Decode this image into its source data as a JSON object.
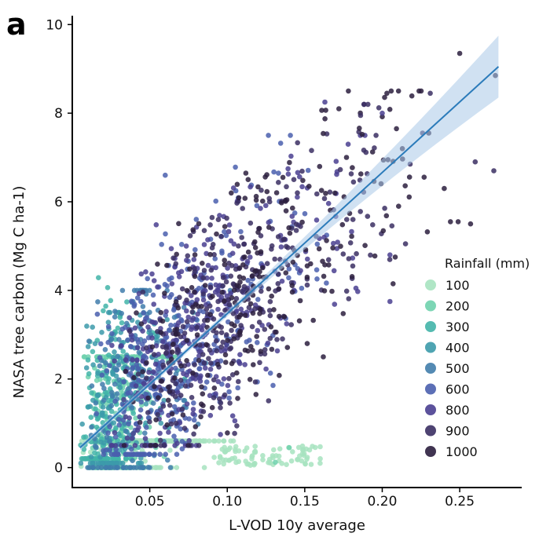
{
  "panel_label": "a",
  "chart_data": {
    "type": "scatter",
    "title": "",
    "xlabel": "L-VOD 10y average",
    "ylabel": "NASA tree carbon (Mg C ha-1)",
    "xlim": [
      0.0,
      0.29
    ],
    "ylim": [
      -0.45,
      10.2
    ],
    "xticks": [
      0.05,
      0.1,
      0.15,
      0.2,
      0.25
    ],
    "xtick_labels": [
      "0.05",
      "0.10",
      "0.15",
      "0.20",
      "0.25"
    ],
    "yticks": [
      0,
      2,
      4,
      6,
      8,
      10
    ],
    "ytick_labels": [
      "0",
      "2",
      "4",
      "6",
      "8",
      "10"
    ],
    "grid": false,
    "legend": {
      "title": "Rainfall (mm)",
      "position": "right",
      "entries": [
        {
          "label": "100",
          "color": "#a7e3c0"
        },
        {
          "label": "200",
          "color": "#6fd1ad"
        },
        {
          "label": "300",
          "color": "#42b4a8"
        },
        {
          "label": "400",
          "color": "#3c9aaa"
        },
        {
          "label": "500",
          "color": "#417dab"
        },
        {
          "label": "600",
          "color": "#4a5fae"
        },
        {
          "label": "800",
          "color": "#4a3f91"
        },
        {
          "label": "900",
          "color": "#3b2f63"
        },
        {
          "label": "1000",
          "color": "#2b1e3e"
        }
      ]
    },
    "regression": {
      "x": [
        0.005,
        0.275
      ],
      "y": [
        0.45,
        9.05
      ],
      "color": "#2b7bba",
      "ci_color": "#a9c9e8"
    },
    "point_clouds": [
      {
        "color": "#a7e3c0",
        "count": 380,
        "x_range": [
          0.005,
          0.08
        ],
        "y_range": [
          0.0,
          0.6
        ],
        "decay": 0.03
      },
      {
        "color": "#6fd1ad",
        "count": 220,
        "x_range": [
          0.005,
          0.06
        ],
        "y_range": [
          0.0,
          2.5
        ],
        "decay": 0.02
      },
      {
        "color": "#42b4a8",
        "count": 170,
        "x_range": [
          0.005,
          0.05
        ],
        "y_range": [
          0.2,
          4.8
        ],
        "decay": 0.015
      },
      {
        "color": "#3c9aaa",
        "count": 150,
        "x_range": [
          0.005,
          0.06
        ],
        "y_range": [
          0.1,
          3.5
        ],
        "decay": 0.02
      },
      {
        "color": "#417dab",
        "count": 170,
        "x_range": [
          0.005,
          0.08
        ],
        "y_range": [
          0.0,
          4.0
        ],
        "decay": 0.03
      },
      {
        "color": "#4a5fae",
        "count": 340,
        "x_range": [
          0.01,
          0.14
        ],
        "y_range": [
          0.3,
          7.5
        ],
        "decay": 0.05
      },
      {
        "color": "#4a3f91",
        "count": 320,
        "x_range": [
          0.02,
          0.16
        ],
        "y_range": [
          0.5,
          7.5
        ],
        "decay": 0.06
      },
      {
        "color": "#3b2f63",
        "count": 280,
        "x_range": [
          0.03,
          0.18
        ],
        "y_range": [
          0.5,
          8.2
        ],
        "decay": 0.07
      },
      {
        "color": "#2b1e3e",
        "count": 260,
        "x_range": [
          0.03,
          0.2
        ],
        "y_range": [
          0.5,
          8.5
        ],
        "decay": 0.08
      }
    ],
    "flat_band": {
      "color": "#a7e3c0",
      "count": 80,
      "x_range": [
        0.09,
        0.16
      ],
      "y_range": [
        0.05,
        0.5
      ]
    },
    "outliers": [
      {
        "x": 0.25,
        "y": 9.35,
        "color": "#2b1e3e"
      },
      {
        "x": 0.273,
        "y": 8.85,
        "color": "#2b1e3e"
      },
      {
        "x": 0.231,
        "y": 8.45,
        "color": "#3b2f63"
      },
      {
        "x": 0.203,
        "y": 8.45,
        "color": "#2b1e3e"
      },
      {
        "x": 0.226,
        "y": 7.55,
        "color": "#3b2f63"
      },
      {
        "x": 0.23,
        "y": 7.55,
        "color": "#2b1e3e"
      },
      {
        "x": 0.2,
        "y": 8.0,
        "color": "#4a3f91"
      },
      {
        "x": 0.196,
        "y": 7.5,
        "color": "#3b2f63"
      },
      {
        "x": 0.213,
        "y": 7.2,
        "color": "#2b1e3e"
      },
      {
        "x": 0.218,
        "y": 6.85,
        "color": "#3b2f63"
      },
      {
        "x": 0.26,
        "y": 6.9,
        "color": "#3b2f63"
      },
      {
        "x": 0.272,
        "y": 6.7,
        "color": "#3b2f63"
      },
      {
        "x": 0.24,
        "y": 6.3,
        "color": "#2b1e3e"
      },
      {
        "x": 0.244,
        "y": 5.55,
        "color": "#2b1e3e"
      },
      {
        "x": 0.249,
        "y": 5.55,
        "color": "#2b1e3e"
      },
      {
        "x": 0.257,
        "y": 5.5,
        "color": "#2b1e3e"
      },
      {
        "x": 0.215,
        "y": 5.05,
        "color": "#3b2f63"
      },
      {
        "x": 0.205,
        "y": 4.8,
        "color": "#4a3f91"
      },
      {
        "x": 0.207,
        "y": 4.15,
        "color": "#2b1e3e"
      },
      {
        "x": 0.205,
        "y": 3.75,
        "color": "#4a3f91"
      },
      {
        "x": 0.181,
        "y": 4.55,
        "color": "#3b2f63"
      },
      {
        "x": 0.183,
        "y": 4.05,
        "color": "#4a3f91"
      },
      {
        "x": 0.163,
        "y": 8.25,
        "color": "#4a3f91"
      },
      {
        "x": 0.172,
        "y": 8.1,
        "color": "#2b1e3e"
      },
      {
        "x": 0.186,
        "y": 7.95,
        "color": "#3b2f63"
      },
      {
        "x": 0.178,
        "y": 7.3,
        "color": "#4a3f91"
      },
      {
        "x": 0.162,
        "y": 2.5,
        "color": "#2b1e3e"
      },
      {
        "x": 0.16,
        "y": 0.2,
        "color": "#a7e3c0"
      },
      {
        "x": 0.148,
        "y": 0.15,
        "color": "#a7e3c0"
      },
      {
        "x": 0.14,
        "y": 0.45,
        "color": "#6fd1ad"
      },
      {
        "x": 0.131,
        "y": 0.12,
        "color": "#6fd1ad"
      },
      {
        "x": 0.06,
        "y": 6.6,
        "color": "#4a5fae"
      }
    ]
  }
}
